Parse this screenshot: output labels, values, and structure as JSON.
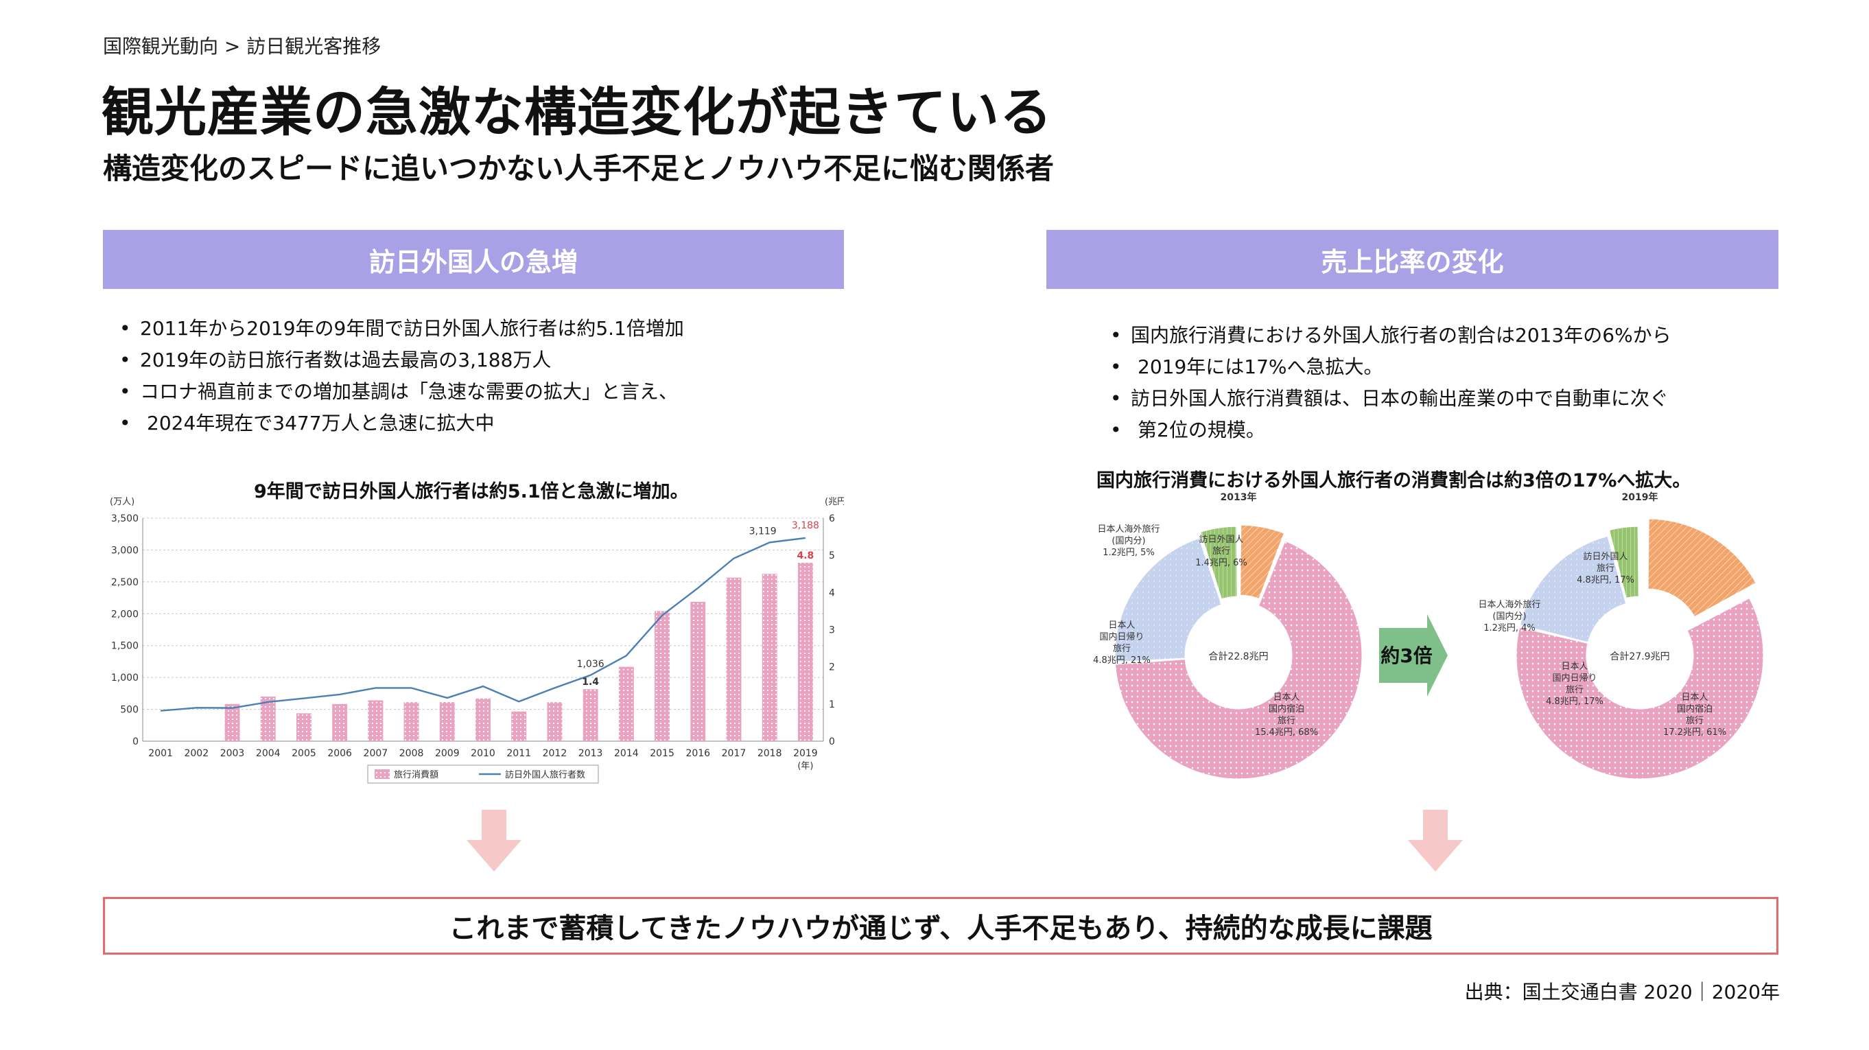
{
  "breadcrumb": "国際観光動向 > 訪日観光客推移",
  "title": "観光産業の急激な構造変化が起きている",
  "subtitle": "構造変化のスピードに追いつかない人手不足とノウハウ不足に悩む関係者",
  "left_section": {
    "header": "訪日外国人の急増",
    "bullets": [
      "2011年から2019年の9年間で訪日外国人旅行者は約5.1倍増加",
      "2019年の訪日旅行者数は過去最高の3,188万人",
      "コロナ禍直前までの増加基調は「急速な需要の拡大」と言え、"
    ],
    "bullet_continuation": "2024年現在で3477万人と急速に拡大中",
    "chart_title": "9年間で訪日外国人旅行者は約5.1倍と急激に増加。"
  },
  "right_section": {
    "header": "売上比率の変化",
    "bullets": [
      "国内旅行消費における外国人旅行者の割合は2013年の6%から",
      "訪日外国人旅行消費額は、日本の輸出産業の中で自動車に次ぐ"
    ],
    "bullet_continuations": [
      "2019年には17%へ急拡大。",
      "第2位の規模。"
    ],
    "chart_title": "国内旅行消費における外国人旅行者の消費割合は約3倍の17%へ拡大。",
    "arrow_label": "約3倍"
  },
  "conclusion": "これまで蓄積してきたノウハウが通じず、人手不足もあり、持続的な成長に課題",
  "source": "出典：国土交通白書 2020｜2020年",
  "colors": {
    "header_bg": "#a9a1e6",
    "bar_pink": "#e9a3c0",
    "line_blue": "#4a7fb5",
    "donut_domestic_stay": "#e9a3c0",
    "donut_day_trip": "#c5d3ee",
    "donut_outbound": "#97c46f",
    "donut_foreign": "#f2a46a",
    "arrow_green": "#7fc08a",
    "down_arrow": "#f6c8c8",
    "conclusion_border": "#e46a6a",
    "highlight_red": "#d9414b"
  },
  "chart_data": [
    {
      "type": "bar",
      "title": "9年間で訪日外国人旅行者は約5.1倍と急激に増加。",
      "categories": [
        "2001",
        "2002",
        "2003",
        "2004",
        "2005",
        "2006",
        "2007",
        "2008",
        "2009",
        "2010",
        "2011",
        "2012",
        "2013",
        "2014",
        "2015",
        "2016",
        "2017",
        "2018",
        "2019"
      ],
      "x_unit_label": "(年)",
      "left_axis": {
        "unit": "(万人)",
        "ticks": [
          "0",
          "500",
          "1,000",
          "1,500",
          "2,000",
          "2,500",
          "3,000",
          "3,500"
        ],
        "ylim": [
          0,
          3500
        ]
      },
      "right_axis": {
        "unit": "(兆円)",
        "ticks": [
          "0",
          "1",
          "2",
          "3",
          "4",
          "5",
          "6"
        ],
        "ylim": [
          0,
          6
        ]
      },
      "grid": true,
      "legend_position": "bottom",
      "series": [
        {
          "name": "旅行消費額",
          "axis": "right",
          "kind": "bar",
          "values": [
            null,
            null,
            1.0,
            1.2,
            0.75,
            1.0,
            1.1,
            1.05,
            1.05,
            1.15,
            0.8,
            1.05,
            1.4,
            2.0,
            3.5,
            3.75,
            4.4,
            4.5,
            4.8
          ]
        },
        {
          "name": "訪日外国人旅行者数",
          "axis": "left",
          "kind": "line",
          "values": [
            477,
            524,
            521,
            614,
            673,
            733,
            835,
            835,
            679,
            861,
            622,
            836,
            1036,
            1341,
            1974,
            2404,
            2869,
            3119,
            3188
          ]
        }
      ],
      "annotations": [
        {
          "category": "2013",
          "label": "1,036"
        },
        {
          "category": "2013",
          "label": "1.4"
        },
        {
          "category": "2018",
          "label": "3,119"
        },
        {
          "category": "2019",
          "label": "3,188"
        },
        {
          "category": "2019",
          "label": "4.8"
        }
      ]
    },
    {
      "type": "pie",
      "title": "2013年",
      "center_label": "合計22.8兆円",
      "slices": [
        {
          "label": "日本人国内宿泊旅行",
          "value_text": "15.4兆円, 68%",
          "value": 68
        },
        {
          "label": "日本人国内日帰り旅行",
          "value_text": "4.8兆円, 21%",
          "value": 21
        },
        {
          "label": "日本人海外旅行（国内分）",
          "value_text": "1.2兆円, 5%",
          "value": 5
        },
        {
          "label": "訪日外国人旅行",
          "value_text": "1.4兆円, 6%",
          "value": 6
        }
      ]
    },
    {
      "type": "pie",
      "title": "2019年",
      "center_label": "合計27.9兆円",
      "slices": [
        {
          "label": "日本人国内宿泊旅行",
          "value_text": "17.2兆円, 61%",
          "value": 61
        },
        {
          "label": "日本人国内日帰り旅行",
          "value_text": "4.8兆円, 17%",
          "value": 17
        },
        {
          "label": "日本人海外旅行（国内分）",
          "value_text": "1.2兆円, 4%",
          "value": 4
        },
        {
          "label": "訪日外国人旅行",
          "value_text": "4.8兆円, 17%",
          "value": 17
        }
      ]
    }
  ]
}
